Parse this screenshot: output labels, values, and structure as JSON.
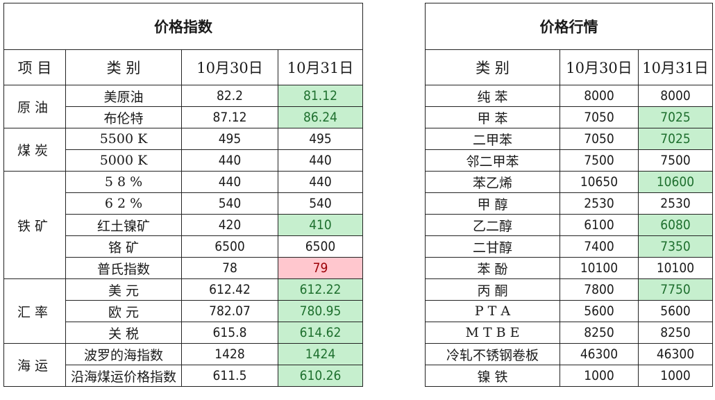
{
  "left_table": {
    "title": "价格指数",
    "headers": [
      "项  目",
      "类    别",
      "10月30日",
      "10月31日"
    ],
    "groups": [
      {
        "name": "原油",
        "rows": [
          {
            "item": "美原油",
            "d30": "82.2",
            "d31": "81.12",
            "status": "down"
          },
          {
            "item": "布伦特",
            "d30": "87.12",
            "d31": "86.24",
            "status": "down"
          }
        ]
      },
      {
        "name": "煤炭",
        "rows": [
          {
            "item": "5500 K",
            "d30": "495",
            "d31": "495",
            "status": "same"
          },
          {
            "item": "5000 K",
            "d30": "440",
            "d31": "440",
            "status": "same"
          }
        ]
      },
      {
        "name": "铁矿",
        "rows": [
          {
            "item": "5 8 %",
            "d30": "440",
            "d31": "440",
            "status": "same"
          },
          {
            "item": "6 2 %",
            "d30": "540",
            "d31": "540",
            "status": "same"
          },
          {
            "item": "红土镍矿",
            "d30": "420",
            "d31": "410",
            "status": "down"
          },
          {
            "item": "铬  矿",
            "d30": "6500",
            "d31": "6500",
            "status": "same"
          },
          {
            "item": "普氏指数",
            "d30": "78",
            "d31": "79",
            "status": "up"
          }
        ]
      },
      {
        "name": "汇率",
        "rows": [
          {
            "item": "美  元",
            "d30": "612.42",
            "d31": "612.22",
            "status": "down"
          },
          {
            "item": "欧  元",
            "d30": "782.07",
            "d31": "780.95",
            "status": "down"
          },
          {
            "item": "关  税",
            "d30": "615.8",
            "d31": "614.62",
            "status": "down"
          }
        ]
      },
      {
        "name": "海运",
        "rows": [
          {
            "item": "波罗的海指数",
            "d30": "1428",
            "d31": "1424",
            "status": "down"
          },
          {
            "item": "沿海煤运价格指数",
            "d30": "611.5",
            "d31": "610.26",
            "status": "down"
          }
        ]
      }
    ]
  },
  "right_table": {
    "title": "价格行情",
    "headers": [
      "类    别",
      "10月30日",
      "10月31日"
    ],
    "rows": [
      {
        "item": "纯  苯",
        "d30": "8000",
        "d31": "8000",
        "status": "same"
      },
      {
        "item": "甲  苯",
        "d30": "7050",
        "d31": "7025",
        "status": "down"
      },
      {
        "item": "二甲苯",
        "d30": "7050",
        "d31": "7025",
        "status": "down"
      },
      {
        "item": "邻二甲苯",
        "d30": "7500",
        "d31": "7500",
        "status": "same"
      },
      {
        "item": "苯乙烯",
        "d30": "10650",
        "d31": "10600",
        "status": "down"
      },
      {
        "item": "甲  醇",
        "d30": "2530",
        "d31": "2530",
        "status": "same"
      },
      {
        "item": "乙二醇",
        "d30": "6100",
        "d31": "6080",
        "status": "down"
      },
      {
        "item": "二甘醇",
        "d30": "7400",
        "d31": "7350",
        "status": "down"
      },
      {
        "item": "苯  酚",
        "d30": "10100",
        "d31": "10100",
        "status": "same"
      },
      {
        "item": "丙  酮",
        "d30": "7800",
        "d31": "7750",
        "status": "down"
      },
      {
        "item": "P T A",
        "d30": "5600",
        "d31": "5600",
        "status": "same"
      },
      {
        "item": "M T B E",
        "d30": "8250",
        "d31": "8250",
        "status": "same"
      },
      {
        "item": "冷轧不锈钢卷板",
        "d30": "46300",
        "d31": "46300",
        "status": "same"
      },
      {
        "item": "镍  铁",
        "d30": "1000",
        "d31": "1000",
        "status": "same"
      }
    ]
  },
  "colors": {
    "down_bg": "#c6efce",
    "down_fg": "#1e6f2e",
    "up_bg": "#ffc7ce",
    "up_fg": "#9c0006"
  }
}
